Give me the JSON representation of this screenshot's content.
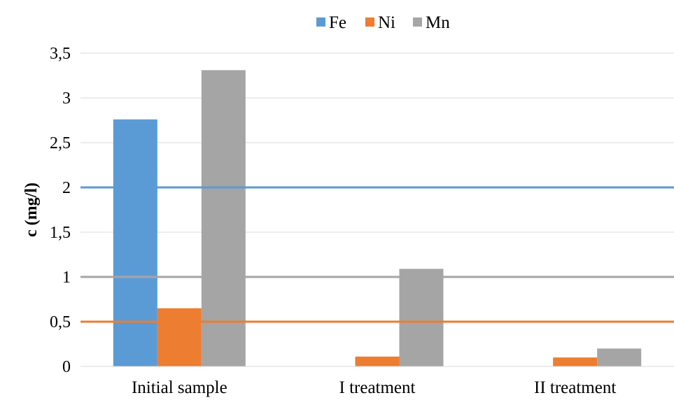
{
  "chart_data": {
    "type": "bar",
    "categories": [
      "Initial sample",
      "I treatment",
      "II treatment"
    ],
    "series": [
      {
        "name": "Fe",
        "color": "#5B9BD5",
        "values": [
          2.76,
          0,
          0
        ]
      },
      {
        "name": "Ni",
        "color": "#ED7D31",
        "values": [
          0.65,
          0.11,
          0.1
        ]
      },
      {
        "name": "Mn",
        "color": "#A5A5A5",
        "values": [
          3.31,
          1.09,
          0.2
        ]
      }
    ],
    "reference_lines": [
      {
        "color": "#5B9BD5",
        "value": 2.0
      },
      {
        "color": "#A5A5A5",
        "value": 1.0
      },
      {
        "color": "#ED7D31",
        "value": 0.5
      }
    ],
    "ylabel": "c (mg/l)",
    "xlabel": "",
    "ylim": [
      0,
      3.5
    ],
    "yticks": [
      0,
      0.5,
      1,
      1.5,
      2,
      2.5,
      3,
      3.5
    ],
    "ytick_labels": [
      "0",
      "0,5",
      "1",
      "1,5",
      "2",
      "2,5",
      "3",
      "3,5"
    ],
    "grid": true,
    "legend_position": "top-center"
  }
}
